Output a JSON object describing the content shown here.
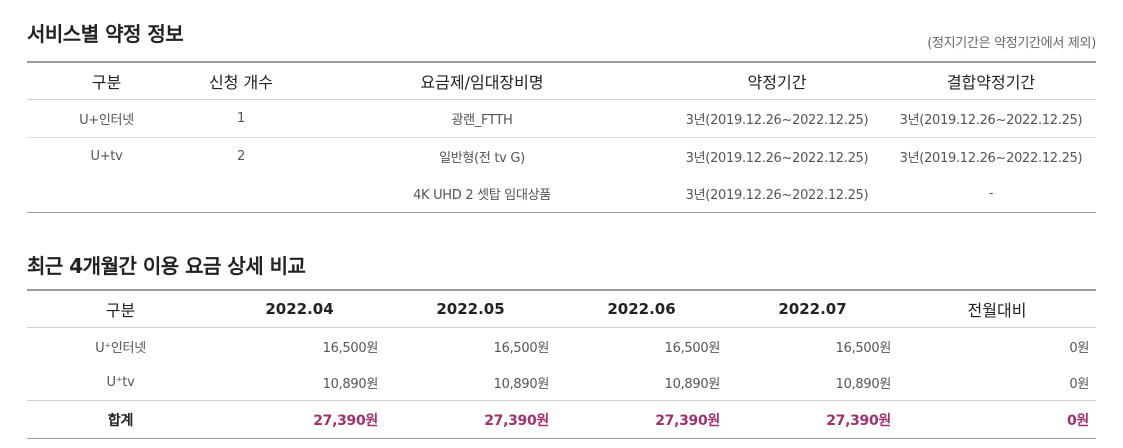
{
  "contract": {
    "title": "서비스별 약정 정보",
    "note": "(정지기간은 약정기간에서 제외)",
    "headers": [
      "구분",
      "신청 개수",
      "요금제/임대장비명",
      "약정기간",
      "결합약정기간"
    ],
    "rows": [
      [
        "U+인터넷",
        "1",
        "광랜_FTTH",
        "3년(2019.12.26~2022.12.25)",
        "3년(2019.12.26~2022.12.25)"
      ],
      [
        "U+tv",
        "2",
        "일반형(전 tv G)",
        "3년(2019.12.26~2022.12.25)",
        "3년(2019.12.26~2022.12.25)"
      ],
      [
        "",
        "",
        "4K UHD 2 셋탑 임대상품",
        "3년(2019.12.26~2022.12.25)",
        "-"
      ]
    ]
  },
  "comparison": {
    "title": "최근 4개월간 이용 요금 상세 비교",
    "headers": [
      "구분",
      "2022.04",
      "2022.05",
      "2022.06",
      "2022.07",
      "전월대비"
    ],
    "rows": [
      [
        "U⁺인터넷",
        "16,500원",
        "16,500원",
        "16,500원",
        "16,500원",
        "0원"
      ],
      [
        "U⁺tv",
        "10,890원",
        "10,890원",
        "10,890원",
        "10,890원",
        "0원"
      ]
    ],
    "total": [
      "합계",
      "27,390원",
      "27,390원",
      "27,390원",
      "27,390원",
      "0원"
    ]
  },
  "colors": {
    "total_accent": "#a1326f",
    "border": "#9a9a9a"
  }
}
